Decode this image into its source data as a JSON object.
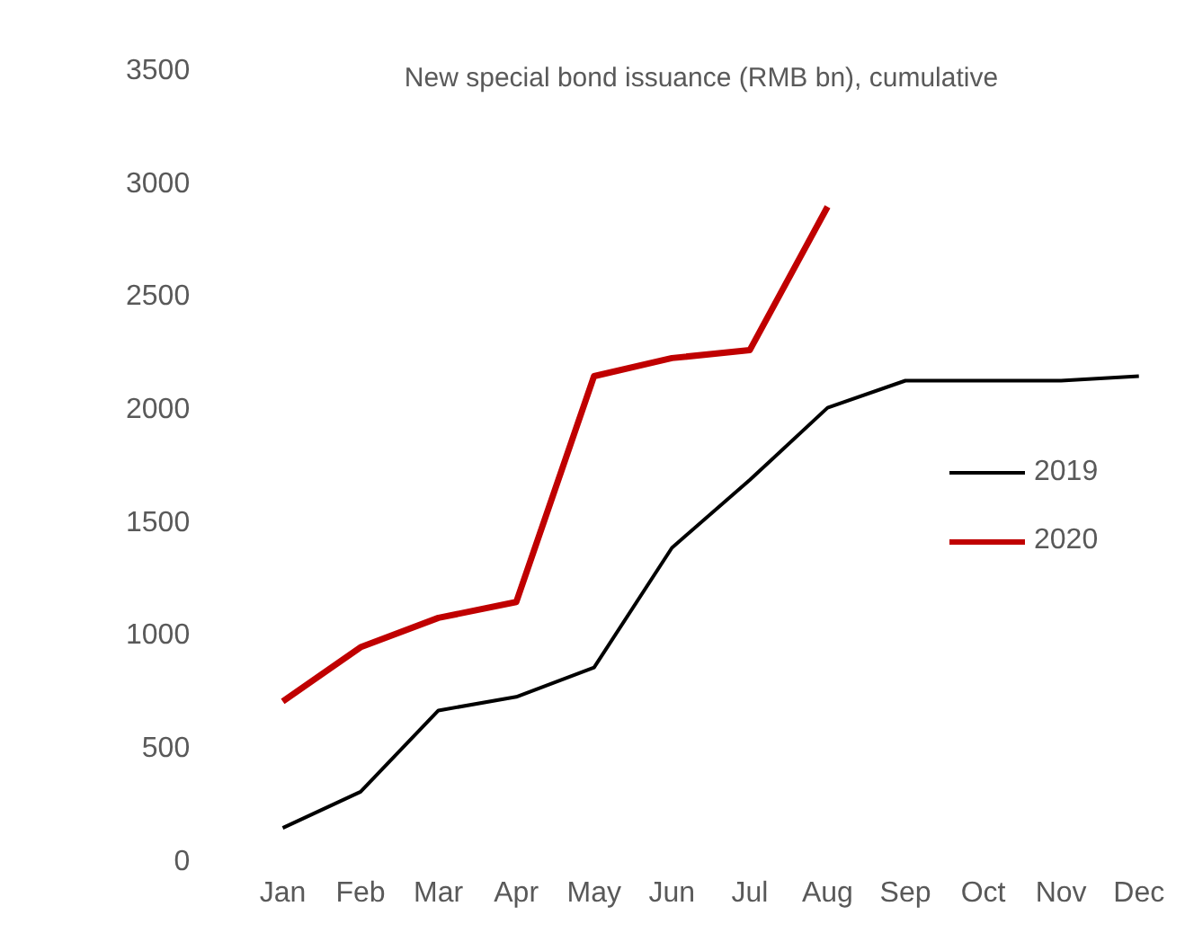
{
  "chart_data": {
    "type": "line",
    "title": "New special bond issuance (RMB bn), cumulative",
    "categories": [
      "Jan",
      "Feb",
      "Mar",
      "Apr",
      "May",
      "Jun",
      "Jul",
      "Aug",
      "Sep",
      "Oct",
      "Nov",
      "Dec"
    ],
    "series": [
      {
        "name": "2019",
        "color": "#000000",
        "values": [
          150,
          310,
          670,
          730,
          860,
          1390,
          1690,
          2010,
          2130,
          2130,
          2130,
          2150
        ]
      },
      {
        "name": "2020",
        "color": "#c00000",
        "values": [
          710,
          950,
          1080,
          1150,
          2150,
          2230,
          2265,
          2900,
          null,
          null,
          null,
          null
        ]
      }
    ],
    "ylim": [
      0,
      3500
    ],
    "yticks": [
      0,
      500,
      1000,
      1500,
      2000,
      2500,
      3000,
      3500
    ],
    "grid": false,
    "legend": "right",
    "marker": "none"
  }
}
